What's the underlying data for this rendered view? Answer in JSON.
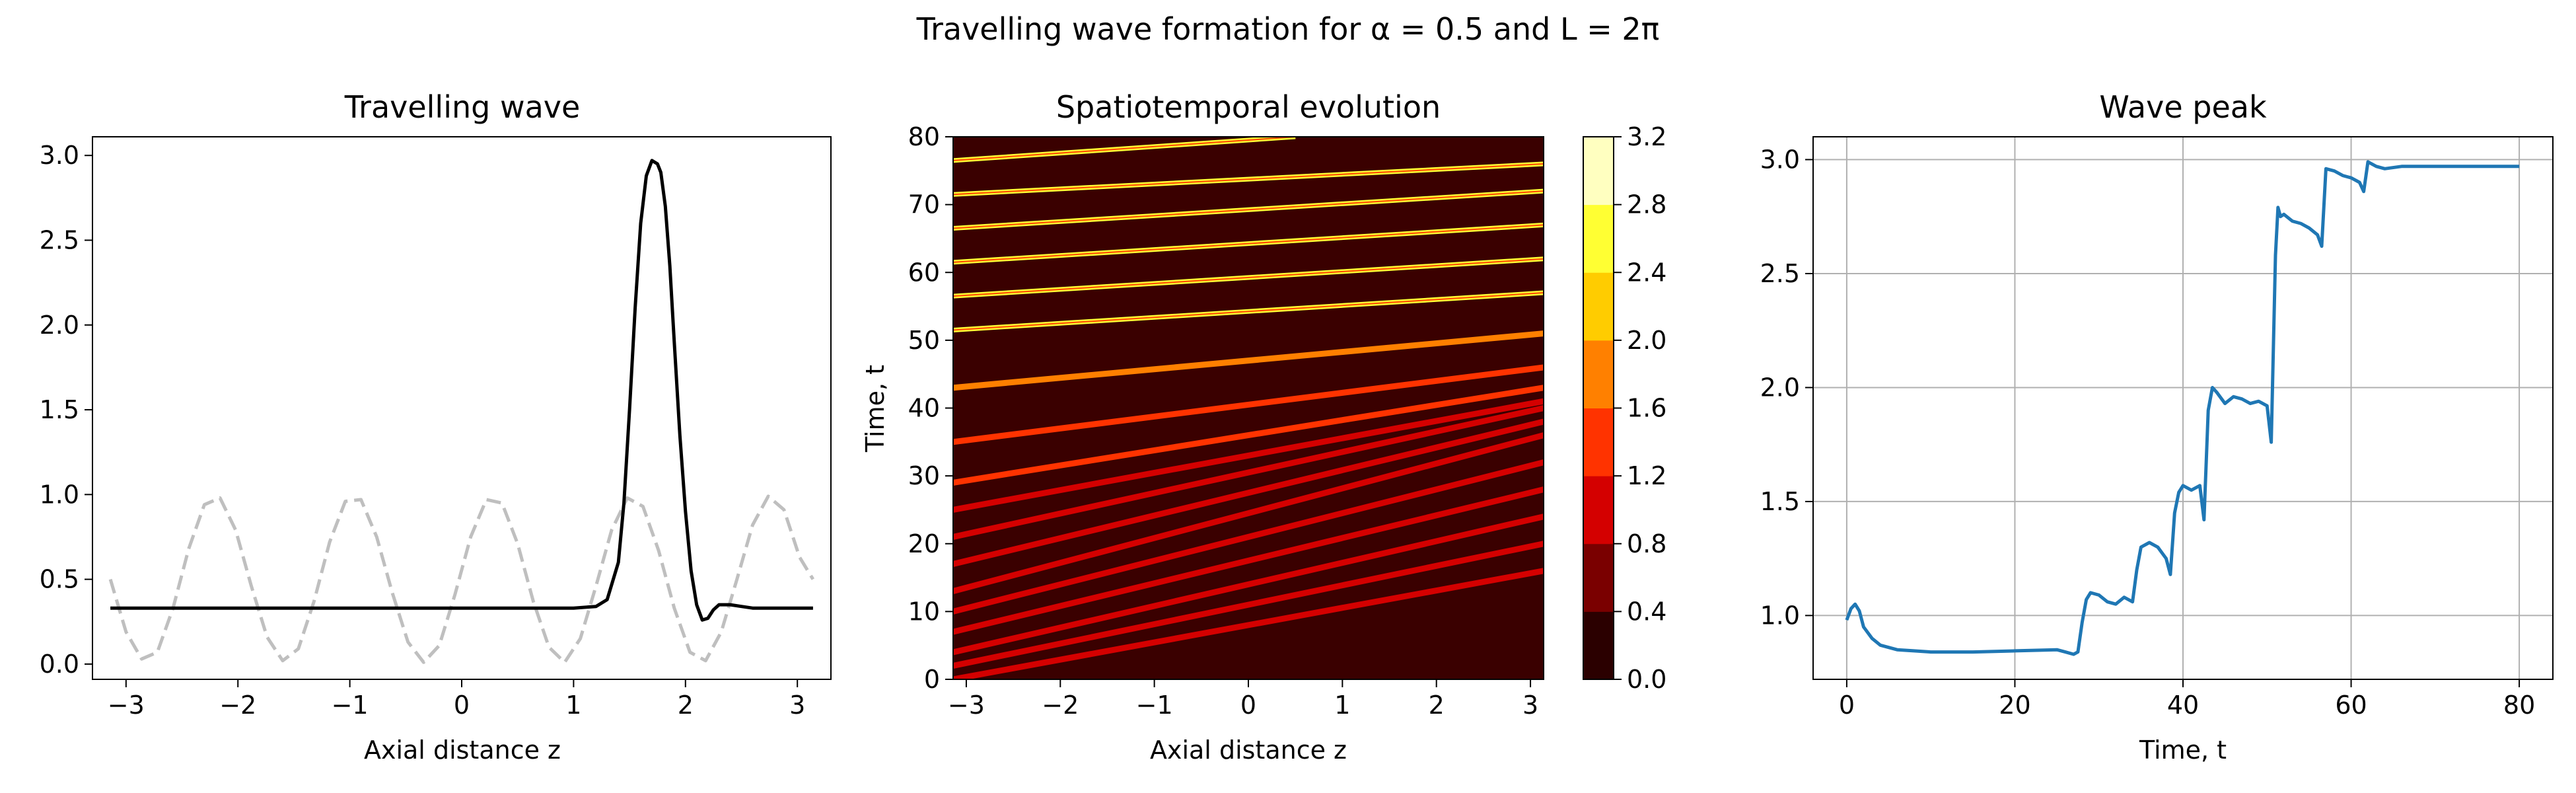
{
  "figure": {
    "suptitle": "Travelling wave formation for α = 0.5 and L = 2π"
  },
  "chart_data": [
    {
      "type": "line",
      "title": "Travelling wave",
      "xlabel": "Axial distance z",
      "ylabel": "",
      "xlim": [
        -3.3,
        3.3
      ],
      "ylim": [
        -0.09,
        3.11
      ],
      "xticks": [
        "−3",
        "−2",
        "−1",
        "0",
        "1",
        "2",
        "3"
      ],
      "xtick_values": [
        -3,
        -2,
        -1,
        0,
        1,
        2,
        3
      ],
      "yticks": [
        "0.0",
        "0.5",
        "1.0",
        "1.5",
        "2.0",
        "2.5",
        "3.0"
      ],
      "ytick_values": [
        0,
        0.5,
        1,
        1.5,
        2,
        2.5,
        3
      ],
      "grid": false,
      "series": [
        {
          "name": "",
          "style": "dashed",
          "color": "#bfbfbf",
          "x": [
            -3.14,
            -3.0,
            -2.86,
            -2.72,
            -2.58,
            -2.44,
            -2.3,
            -2.16,
            -2.02,
            -1.88,
            -1.74,
            -1.6,
            -1.46,
            -1.32,
            -1.18,
            -1.04,
            -0.9,
            -0.76,
            -0.62,
            -0.48,
            -0.34,
            -0.2,
            -0.06,
            0.08,
            0.22,
            0.36,
            0.5,
            0.64,
            0.78,
            0.92,
            1.06,
            1.2,
            1.34,
            1.48,
            1.62,
            1.76,
            1.9,
            2.04,
            2.18,
            2.32,
            2.46,
            2.6,
            2.74,
            2.88,
            3.02,
            3.14
          ],
          "y": [
            0.5,
            0.19,
            0.03,
            0.07,
            0.33,
            0.68,
            0.94,
            0.98,
            0.79,
            0.46,
            0.16,
            0.02,
            0.09,
            0.37,
            0.72,
            0.96,
            0.97,
            0.75,
            0.42,
            0.13,
            0.01,
            0.11,
            0.41,
            0.75,
            0.97,
            0.95,
            0.71,
            0.37,
            0.1,
            0.01,
            0.15,
            0.46,
            0.79,
            0.98,
            0.93,
            0.67,
            0.33,
            0.07,
            0.02,
            0.19,
            0.5,
            0.82,
            0.99,
            0.91,
            0.63,
            0.5
          ]
        },
        {
          "name": "",
          "style": "solid",
          "color": "#000000",
          "x": [
            -3.14,
            -2.0,
            -1.0,
            0.0,
            1.0,
            1.2,
            1.3,
            1.4,
            1.45,
            1.5,
            1.55,
            1.6,
            1.65,
            1.7,
            1.75,
            1.78,
            1.82,
            1.86,
            1.9,
            1.95,
            2.0,
            2.05,
            2.1,
            2.15,
            2.2,
            2.25,
            2.3,
            2.4,
            2.5,
            2.6,
            2.8,
            3.14
          ],
          "y": [
            0.33,
            0.33,
            0.33,
            0.33,
            0.33,
            0.34,
            0.38,
            0.6,
            0.95,
            1.5,
            2.1,
            2.6,
            2.88,
            2.97,
            2.95,
            2.9,
            2.7,
            2.35,
            1.9,
            1.35,
            0.9,
            0.55,
            0.35,
            0.26,
            0.27,
            0.32,
            0.35,
            0.35,
            0.34,
            0.33,
            0.33,
            0.33
          ]
        }
      ]
    },
    {
      "type": "heatmap",
      "title": "Spatiotemporal evolution",
      "xlabel": "Axial distance z",
      "ylabel": "Time, t",
      "xlim": [
        -3.14,
        3.14
      ],
      "ylim": [
        0,
        80
      ],
      "xticks": [
        "−3",
        "−2",
        "−1",
        "0",
        "1",
        "2",
        "3"
      ],
      "xtick_values": [
        -3,
        -2,
        -1,
        0,
        1,
        2,
        3
      ],
      "yticks": [
        "0",
        "10",
        "20",
        "30",
        "40",
        "50",
        "60",
        "70",
        "80"
      ],
      "ytick_values": [
        0,
        10,
        20,
        30,
        40,
        50,
        60,
        70,
        80
      ],
      "colorbar": {
        "ticks": [
          "0.0",
          "0.4",
          "0.8",
          "1.2",
          "1.6",
          "2.0",
          "2.4",
          "2.8",
          "3.2"
        ],
        "levels": [
          0,
          0.4,
          0.8,
          1.2,
          1.6,
          2.0,
          2.4,
          2.8,
          3.2
        ],
        "colors": [
          "#2b0000",
          "#7a0000",
          "#d40000",
          "#ff3300",
          "#ff8000",
          "#ffcc00",
          "#ffff33",
          "#ffffc0"
        ]
      },
      "background_color": "#3a0000",
      "bands": [
        {
          "z0": -3.14,
          "t0": 0,
          "z1": 3.14,
          "t1": 16,
          "value": 1.0
        },
        {
          "z0": -3.14,
          "t0": 2,
          "z1": 3.14,
          "t1": 20,
          "value": 1.0
        },
        {
          "z0": -3.14,
          "t0": 4,
          "z1": 3.14,
          "t1": 24,
          "value": 1.0
        },
        {
          "z0": -3.14,
          "t0": 7,
          "z1": 3.14,
          "t1": 28,
          "value": 1.0
        },
        {
          "z0": -3.14,
          "t0": 10,
          "z1": 3.14,
          "t1": 32,
          "value": 1.0
        },
        {
          "z0": -3.14,
          "t0": 13,
          "z1": 3.14,
          "t1": 36,
          "value": 1.0
        },
        {
          "z0": -3.14,
          "t0": 17,
          "z1": 3.14,
          "t1": 38,
          "value": 1.0
        },
        {
          "z0": -3.14,
          "t0": 21,
          "z1": 3.14,
          "t1": 40,
          "value": 1.0
        },
        {
          "z0": -3.14,
          "t0": 25,
          "z1": 3.14,
          "t1": 41,
          "value": 1.0
        },
        {
          "z0": -3.14,
          "t0": 29,
          "z1": 3.14,
          "t1": 43,
          "value": 1.2
        },
        {
          "z0": -3.14,
          "t0": 35,
          "z1": 3.14,
          "t1": 46,
          "value": 1.2
        },
        {
          "z0": -3.14,
          "t0": 43,
          "z1": 3.14,
          "t1": 51,
          "value": 1.8
        },
        {
          "z0": -3.14,
          "t0": 51.5,
          "z1": 3.14,
          "t1": 57,
          "value": 2.6
        },
        {
          "z0": -3.14,
          "t0": 56.5,
          "z1": 3.14,
          "t1": 62,
          "value": 2.6
        },
        {
          "z0": -3.14,
          "t0": 61.5,
          "z1": 3.14,
          "t1": 67,
          "value": 2.6
        },
        {
          "z0": -3.14,
          "t0": 66.5,
          "z1": 3.14,
          "t1": 72,
          "value": 2.6
        },
        {
          "z0": -3.14,
          "t0": 71.5,
          "z1": 3.14,
          "t1": 76,
          "value": 2.6
        },
        {
          "z0": -3.14,
          "t0": 76.5,
          "z1": 0.5,
          "t1": 80,
          "value": 2.6
        }
      ]
    },
    {
      "type": "line",
      "title": "Wave peak",
      "xlabel": "Time, t",
      "ylabel": "",
      "xlim": [
        -4,
        84
      ],
      "ylim": [
        0.72,
        3.1
      ],
      "xticks": [
        "0",
        "20",
        "40",
        "60",
        "80"
      ],
      "xtick_values": [
        0,
        20,
        40,
        60,
        80
      ],
      "yticks": [
        "1.0",
        "1.5",
        "2.0",
        "2.5",
        "3.0"
      ],
      "ytick_values": [
        1.0,
        1.5,
        2.0,
        2.5,
        3.0
      ],
      "grid": true,
      "series": [
        {
          "name": "",
          "style": "solid",
          "color": "#1f77b4",
          "x": [
            0,
            0.5,
            1,
            1.5,
            2,
            3,
            4,
            6,
            8,
            10,
            15,
            20,
            25,
            26,
            27,
            27.5,
            28,
            28.5,
            29,
            30,
            31,
            32,
            33,
            34,
            34.5,
            35,
            36,
            37,
            38,
            38.5,
            39,
            39.5,
            40,
            41,
            42,
            42.5,
            43,
            43.5,
            44,
            45,
            46,
            47,
            48,
            49,
            50,
            50.5,
            51,
            51.3,
            51.6,
            52,
            53,
            54,
            55,
            56,
            56.5,
            57,
            58,
            59,
            60,
            61,
            61.5,
            62,
            63,
            64,
            66,
            68,
            70,
            72,
            74,
            76,
            78,
            80
          ],
          "y": [
            0.98,
            1.03,
            1.05,
            1.02,
            0.95,
            0.9,
            0.87,
            0.85,
            0.845,
            0.84,
            0.84,
            0.845,
            0.85,
            0.84,
            0.83,
            0.84,
            0.97,
            1.07,
            1.1,
            1.09,
            1.06,
            1.05,
            1.08,
            1.06,
            1.2,
            1.3,
            1.32,
            1.3,
            1.25,
            1.18,
            1.45,
            1.54,
            1.57,
            1.55,
            1.57,
            1.42,
            1.9,
            2.0,
            1.98,
            1.93,
            1.96,
            1.95,
            1.93,
            1.94,
            1.92,
            1.76,
            2.58,
            2.79,
            2.75,
            2.76,
            2.73,
            2.72,
            2.7,
            2.67,
            2.62,
            2.96,
            2.95,
            2.93,
            2.92,
            2.9,
            2.86,
            2.99,
            2.97,
            2.96,
            2.97,
            2.97,
            2.97,
            2.97,
            2.97,
            2.97,
            2.97,
            2.97
          ]
        }
      ]
    }
  ]
}
